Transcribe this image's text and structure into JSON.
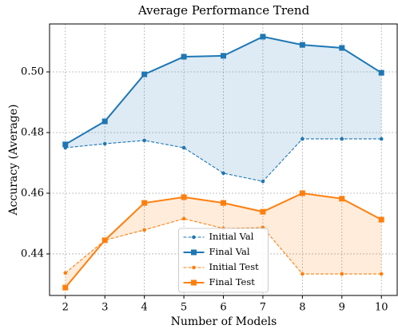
{
  "chart_data": {
    "type": "line",
    "title": "Average Performance Trend",
    "xlabel": "Number of Models",
    "ylabel": "Accuracy (Average)",
    "x": [
      2,
      3,
      4,
      5,
      6,
      7,
      8,
      9,
      10
    ],
    "series": [
      {
        "name": "Initial Val",
        "color": "#1f77b4",
        "linestyle": "dashed",
        "marker": "circle",
        "values": [
          0.475,
          0.4763,
          0.4774,
          0.475,
          0.4666,
          0.4639,
          0.4779,
          0.4779,
          0.4779
        ]
      },
      {
        "name": "Final Val",
        "color": "#1f77b4",
        "linestyle": "solid",
        "marker": "square",
        "values": [
          0.4761,
          0.4837,
          0.4992,
          0.505,
          0.5053,
          0.5116,
          0.5089,
          0.5079,
          0.4997
        ]
      },
      {
        "name": "Initial Test",
        "color": "#ff7f0e",
        "linestyle": "dashed",
        "marker": "circle",
        "values": [
          0.4337,
          0.4445,
          0.4479,
          0.4516,
          0.4484,
          0.4487,
          0.4334,
          0.4334,
          0.4334
        ]
      },
      {
        "name": "Final Test",
        "color": "#ff7f0e",
        "linestyle": "solid",
        "marker": "square",
        "values": [
          0.4289,
          0.4445,
          0.4568,
          0.4587,
          0.4568,
          0.4539,
          0.46,
          0.4582,
          0.4513
        ]
      }
    ],
    "fill_between": [
      [
        0,
        1
      ],
      [
        2,
        3
      ]
    ],
    "xlim": [
      1.6,
      10.4
    ],
    "xticks": [
      2,
      3,
      4,
      5,
      6,
      7,
      8,
      9,
      10
    ],
    "ylim": [
      0.4263,
      0.5158
    ],
    "yticks": [
      {
        "value": 0.44,
        "label": "0.44"
      },
      {
        "value": 0.46,
        "label": "0.46"
      },
      {
        "value": 0.48,
        "label": "0.48"
      },
      {
        "value": 0.5,
        "label": "0.50"
      }
    ],
    "grid": true,
    "legend": "lower center"
  }
}
